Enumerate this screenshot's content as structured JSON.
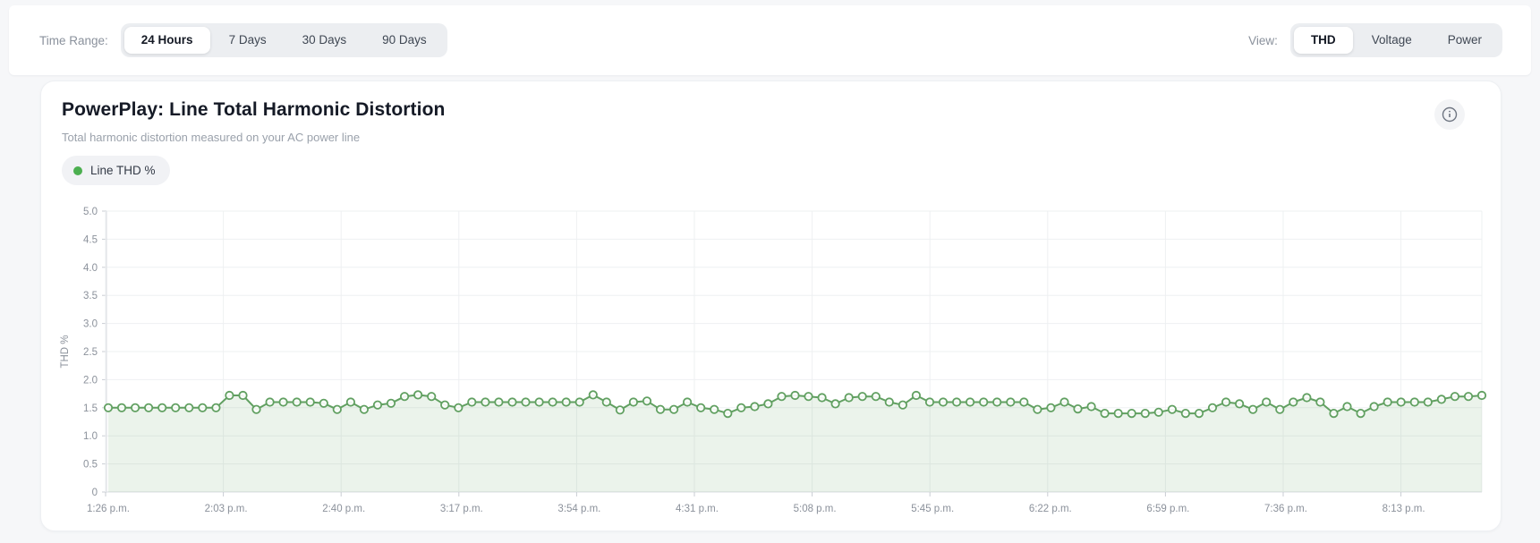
{
  "toolbar": {
    "time_range_label": "Time Range:",
    "time_range_options": [
      "24 Hours",
      "7 Days",
      "30 Days",
      "90 Days"
    ],
    "time_range_active": "24 Hours",
    "view_label": "View:",
    "view_options": [
      "THD",
      "Voltage",
      "Power"
    ],
    "view_active": "THD"
  },
  "card": {
    "title": "PowerPlay: Line Total Harmonic Distortion",
    "subtitle": "Total harmonic distortion measured on your AC power line",
    "legend": {
      "label": "Line THD %",
      "dot_color": "#4caf50"
    },
    "info_icon": "info-icon"
  },
  "colors": {
    "line": "#61a061",
    "area_fill": "#61a061",
    "area_opacity": 0.13,
    "grid": "#eef0f2",
    "axis": "#d9dce1",
    "tick": "#c9cdd3",
    "tick_text": "#8b919b",
    "accent_green": "#4caf50"
  },
  "chart_data": {
    "type": "line",
    "title": "PowerPlay: Line Total Harmonic Distortion",
    "ylabel": "THD %",
    "xlabel": "",
    "ylim": [
      0,
      5
    ],
    "y_tick_labels": [
      "5.0",
      "4.5",
      "4.0",
      "3.5",
      "3.0",
      "2.5",
      "2.0",
      "1.5",
      "1.0",
      "0.5",
      "0"
    ],
    "x_tick_labels": [
      "1:26 p.m.",
      "2:03 p.m.",
      "2:40 p.m.",
      "3:17 p.m.",
      "3:54 p.m.",
      "4:31 p.m.",
      "5:08 p.m.",
      "5:45 p.m.",
      "6:22 p.m.",
      "6:59 p.m.",
      "7:36 p.m.",
      "8:13 p.m."
    ],
    "grid": true,
    "legend_position": "top-left",
    "marker": "circle-open",
    "series": [
      {
        "name": "Line THD %",
        "color": "#61a061",
        "values": [
          1.5,
          1.5,
          1.5,
          1.5,
          1.5,
          1.5,
          1.5,
          1.5,
          1.5,
          1.72,
          1.72,
          1.47,
          1.6,
          1.6,
          1.6,
          1.6,
          1.58,
          1.47,
          1.6,
          1.47,
          1.55,
          1.58,
          1.7,
          1.73,
          1.7,
          1.55,
          1.5,
          1.6,
          1.6,
          1.6,
          1.6,
          1.6,
          1.6,
          1.6,
          1.6,
          1.6,
          1.73,
          1.6,
          1.46,
          1.6,
          1.62,
          1.47,
          1.47,
          1.6,
          1.5,
          1.47,
          1.4,
          1.5,
          1.52,
          1.57,
          1.7,
          1.72,
          1.7,
          1.68,
          1.57,
          1.68,
          1.7,
          1.7,
          1.6,
          1.55,
          1.72,
          1.6,
          1.6,
          1.6,
          1.6,
          1.6,
          1.6,
          1.6,
          1.6,
          1.47,
          1.5,
          1.6,
          1.48,
          1.52,
          1.4,
          1.4,
          1.4,
          1.4,
          1.42,
          1.47,
          1.4,
          1.4,
          1.5,
          1.6,
          1.57,
          1.47,
          1.6,
          1.47,
          1.6,
          1.68,
          1.6,
          1.4,
          1.52,
          1.4,
          1.52,
          1.6,
          1.6,
          1.6,
          1.6,
          1.65,
          1.7,
          1.7,
          1.72
        ]
      }
    ]
  }
}
